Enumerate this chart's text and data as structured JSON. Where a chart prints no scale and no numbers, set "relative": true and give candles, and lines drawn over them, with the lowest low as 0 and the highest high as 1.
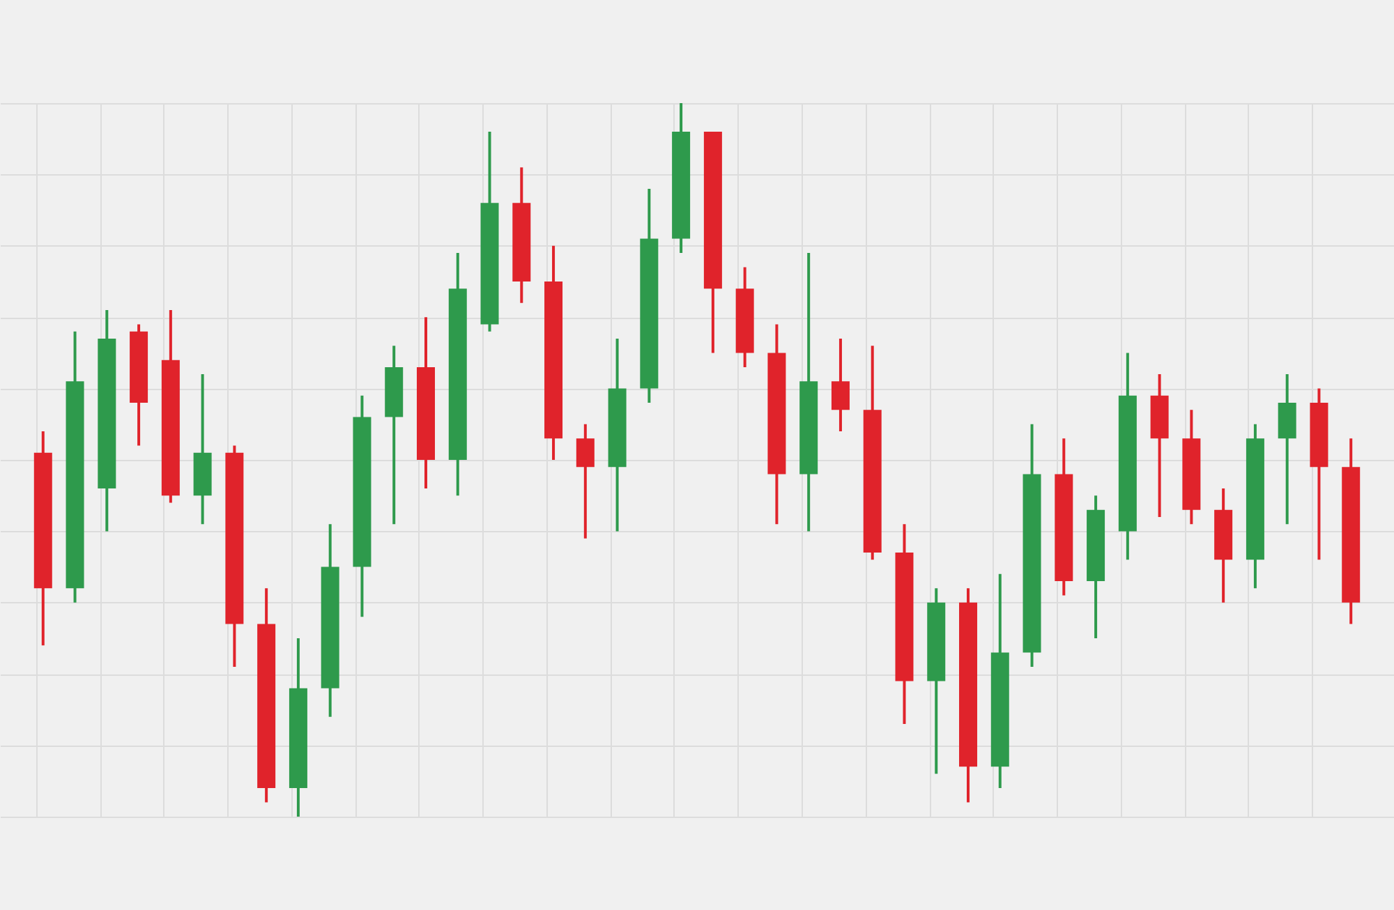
{
  "chart_data": {
    "type": "candlestick",
    "relative": true,
    "grid": true,
    "categories": [
      null,
      null,
      null,
      null,
      null,
      null,
      null,
      null,
      null,
      null,
      null,
      null,
      null,
      null,
      null,
      null,
      null,
      null,
      null,
      null,
      null,
      null,
      null,
      null,
      null,
      null,
      null,
      null,
      null,
      null,
      null,
      null,
      null,
      null,
      null,
      null,
      null,
      null,
      null,
      null,
      null,
      null
    ],
    "ohlc": [
      [
        0.51,
        0.54,
        0.24,
        0.32
      ],
      [
        0.32,
        0.68,
        0.3,
        0.61
      ],
      [
        0.46,
        0.71,
        0.4,
        0.67
      ],
      [
        0.68,
        0.69,
        0.52,
        0.58
      ],
      [
        0.64,
        0.71,
        0.44,
        0.45
      ],
      [
        0.45,
        0.62,
        0.41,
        0.51
      ],
      [
        0.51,
        0.52,
        0.21,
        0.27
      ],
      [
        0.27,
        0.32,
        0.02,
        0.04
      ],
      [
        0.04,
        0.25,
        0,
        0.18
      ],
      [
        0.18,
        0.41,
        0.14,
        0.35
      ],
      [
        0.35,
        0.59,
        0.28,
        0.56
      ],
      [
        0.56,
        0.66,
        0.41,
        0.63
      ],
      [
        0.63,
        0.7,
        0.46,
        0.5
      ],
      [
        0.5,
        0.79,
        0.45,
        0.74
      ],
      [
        0.69,
        0.96,
        0.68,
        0.86
      ],
      [
        0.86,
        0.91,
        0.72,
        0.75
      ],
      [
        0.75,
        0.8,
        0.5,
        0.53
      ],
      [
        0.53,
        0.55,
        0.39,
        0.49
      ],
      [
        0.49,
        0.67,
        0.4,
        0.6
      ],
      [
        0.6,
        0.88,
        0.58,
        0.81
      ],
      [
        0.81,
        1,
        0.79,
        0.96
      ],
      [
        0.96,
        0.96,
        0.65,
        0.74
      ],
      [
        0.74,
        0.77,
        0.63,
        0.65
      ],
      [
        0.65,
        0.69,
        0.41,
        0.48
      ],
      [
        0.48,
        0.79,
        0.4,
        0.61
      ],
      [
        0.61,
        0.67,
        0.54,
        0.57
      ],
      [
        0.57,
        0.66,
        0.36,
        0.37
      ],
      [
        0.37,
        0.41,
        0.13,
        0.19
      ],
      [
        0.19,
        0.32,
        0.06,
        0.3
      ],
      [
        0.3,
        0.32,
        0.02,
        0.07
      ],
      [
        0.07,
        0.34,
        0.04,
        0.23
      ],
      [
        0.23,
        0.55,
        0.21,
        0.48
      ],
      [
        0.48,
        0.53,
        0.31,
        0.33
      ],
      [
        0.33,
        0.45,
        0.25,
        0.43
      ],
      [
        0.4,
        0.65,
        0.36,
        0.59
      ],
      [
        0.59,
        0.62,
        0.42,
        0.53
      ],
      [
        0.53,
        0.57,
        0.41,
        0.43
      ],
      [
        0.43,
        0.46,
        0.3,
        0.36
      ],
      [
        0.36,
        0.55,
        0.32,
        0.53
      ],
      [
        0.53,
        0.62,
        0.41,
        0.58
      ],
      [
        0.58,
        0.6,
        0.36,
        0.49
      ],
      [
        0.49,
        0.53,
        0.27,
        0.3
      ]
    ],
    "colors": [
      "#e0232b",
      "#2e9a4c",
      "#2e9a4c",
      "#e0232b",
      "#e0232b",
      "#2e9a4c",
      "#e0232b",
      "#e0232b",
      "#2e9a4c",
      "#2e9a4c",
      "#2e9a4c",
      "#2e9a4c",
      "#e0232b",
      "#2e9a4c",
      "#2e9a4c",
      "#e0232b",
      "#e0232b",
      "#e0232b",
      "#2e9a4c",
      "#2e9a4c",
      "#2e9a4c",
      "#e0232b",
      "#e0232b",
      "#e0232b",
      "#2e9a4c",
      "#e0232b",
      "#e0232b",
      "#e0232b",
      "#2e9a4c",
      "#e0232b",
      "#2e9a4c",
      "#2e9a4c",
      "#e0232b",
      "#2e9a4c",
      "#2e9a4c",
      "#e0232b",
      "#e0232b",
      "#e0232b",
      "#2e9a4c",
      "#2e9a4c",
      "#e0232b",
      "#e0232b"
    ]
  }
}
